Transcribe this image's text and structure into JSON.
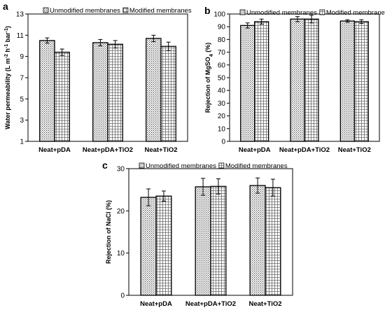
{
  "figure": {
    "legend_labels": [
      "Unmodified membranes",
      "Modified membranes"
    ],
    "panels": [
      {
        "label": "a",
        "ylabel_html": "Water permeability (L m<tspan baseline-shift='super' font-size='7'>-2</tspan> h<tspan baseline-shift='super' font-size='7'>-1</tspan> bar<tspan baseline-shift='super' font-size='7'>-1</tspan>)"
      },
      {
        "label": "b",
        "ylabel_html": "Rejection of MgSO<tspan baseline-shift='sub' font-size='7'>4</tspan> (%)"
      },
      {
        "label": "c",
        "ylabel_html": "Rejection of NaCl (%)"
      }
    ]
  },
  "chart_data": [
    {
      "type": "bar",
      "panel": "a",
      "title": "",
      "xlabel": "",
      "ylabel": "Water permeability (L m-2 h-1 bar-1)",
      "categories": [
        "Neat+pDA",
        "Neat+pDA+TiO2",
        "Neat+TiO2"
      ],
      "series": [
        {
          "name": "Unmodified membranes",
          "values": [
            10.5,
            10.3,
            10.7
          ],
          "errors": [
            0.25,
            0.3,
            0.3
          ]
        },
        {
          "name": "Modified membranes",
          "values": [
            9.4,
            10.15,
            9.95
          ],
          "errors": [
            0.3,
            0.35,
            0.4
          ]
        }
      ],
      "ylim": [
        1,
        13
      ],
      "yticks": [
        1,
        3,
        5,
        7,
        9,
        11,
        13
      ],
      "legend": "top",
      "grid": false
    },
    {
      "type": "bar",
      "panel": "b",
      "title": "",
      "xlabel": "",
      "ylabel": "Rejection of MgSO4 (%)",
      "categories": [
        "Neat+pDA",
        "Neat+pDA+TiO2",
        "Neat+TiO2"
      ],
      "series": [
        {
          "name": "Unmodified membranes",
          "values": [
            91,
            96,
            94.5
          ],
          "errors": [
            2.0,
            2.0,
            1.0
          ]
        },
        {
          "name": "Modified membranes",
          "values": [
            94,
            96,
            94
          ],
          "errors": [
            2.0,
            3.0,
            1.5
          ]
        }
      ],
      "ylim": [
        0,
        100
      ],
      "yticks": [
        0,
        10,
        20,
        30,
        40,
        50,
        60,
        70,
        80,
        90,
        100
      ],
      "legend": "top",
      "grid": false
    },
    {
      "type": "bar",
      "panel": "c",
      "title": "",
      "xlabel": "",
      "ylabel": "Rejection of NaCl (%)",
      "categories": [
        "Neat+pDA",
        "Neat+pDA+TiO2",
        "Neat+TiO2"
      ],
      "series": [
        {
          "name": "Unmodified membranes",
          "values": [
            23.2,
            25.7,
            26.0
          ],
          "errors": [
            2.0,
            2.0,
            1.8
          ]
        },
        {
          "name": "Modified membranes",
          "values": [
            23.5,
            25.8,
            25.5
          ],
          "errors": [
            1.2,
            1.8,
            2.0
          ]
        }
      ],
      "ylim": [
        0,
        30
      ],
      "yticks": [
        0,
        10,
        20,
        30
      ],
      "legend": "top",
      "grid": false
    }
  ]
}
